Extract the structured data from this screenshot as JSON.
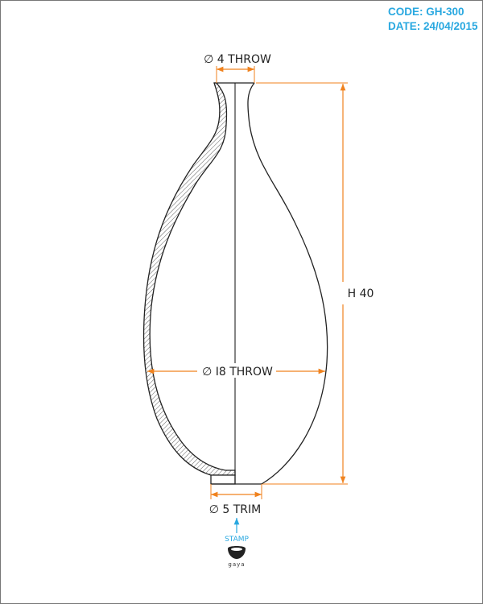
{
  "header": {
    "code": "CODE: GH-300",
    "date": "DATE: 24/04/2015"
  },
  "dimensions": {
    "neck": "∅ 4  THROW",
    "body": "∅ I8  THROW",
    "base": "∅ 5  TRIM",
    "height": "H 40"
  },
  "stamp": {
    "label": "STAMP",
    "logo_text": "gaya"
  },
  "colors": {
    "accent": "#29a8e0",
    "dimension": "#f0821e",
    "outline": "#222222"
  }
}
